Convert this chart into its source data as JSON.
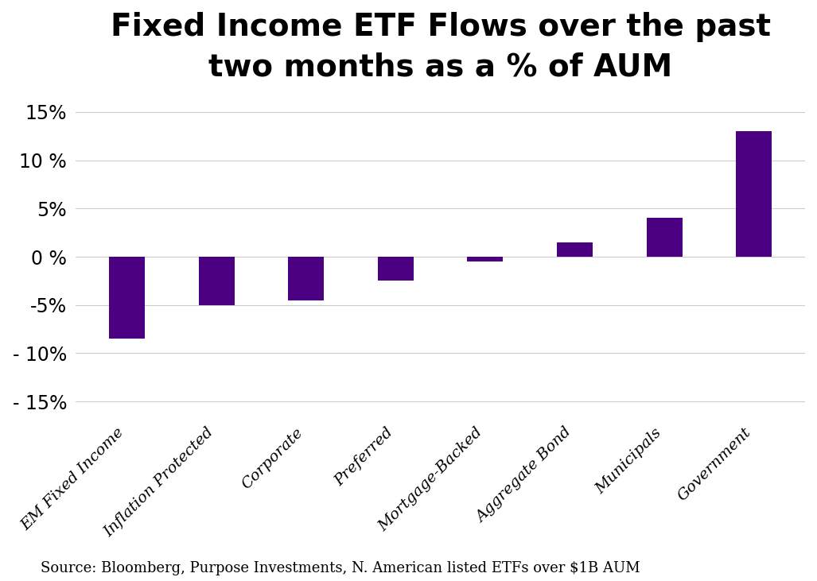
{
  "categories": [
    "EM Fixed Income",
    "Inflation Protected",
    "Corporate",
    "Preferred",
    "Mortgage-Backed",
    "Aggregate Bond",
    "Municipals",
    "Government"
  ],
  "values": [
    -8.5,
    -5.0,
    -4.5,
    -2.5,
    -0.5,
    1.5,
    4.0,
    13.0
  ],
  "bar_color": "#4B0082",
  "title_line1": "Fixed Income ETF Flows over the past",
  "title_line2": "two months as a % of AUM",
  "title_fontsize": 28,
  "ytick_labels": [
    "15%",
    "10 %",
    "5%",
    "0 %",
    "-5%",
    "- 10%",
    "- 15%"
  ],
  "ytick_values": [
    15,
    10,
    5,
    0,
    -5,
    -10,
    -15
  ],
  "source_text": "Source: Bloomberg, Purpose Investments, N. American listed ETFs over $1B AUM",
  "background_color": "#ffffff",
  "grid_color": "#cccccc",
  "ylim": [
    -17,
    16.5
  ],
  "bar_width": 0.4
}
